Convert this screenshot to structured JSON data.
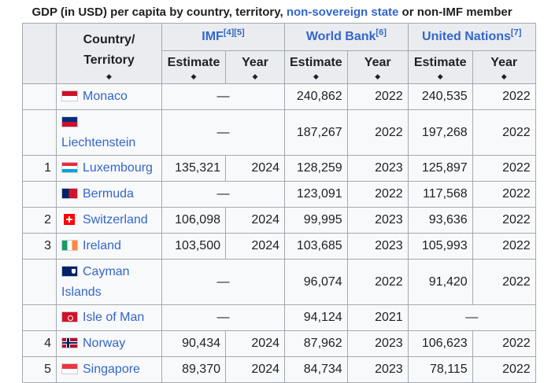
{
  "caption": {
    "prefix": "GDP (in USD) per capita by country, territory,",
    "link": "non-sovereign state",
    "suffix": "or non-IMF member"
  },
  "headers": {
    "country": "Country/",
    "territory": "Territory",
    "imf": "IMF",
    "imf_refs": "[4][5]",
    "wb": "World Bank",
    "wb_refs": "[6]",
    "un": "United Nations",
    "un_refs": "[7]",
    "estimate": "Estimate",
    "year": "Year",
    "sort_glyph": "◆"
  },
  "rows": [
    {
      "rank": "",
      "country": "Monaco",
      "flag": "monaco",
      "imf_est": "—",
      "imf_year": "",
      "wb_est": "240,862",
      "wb_year": "2022",
      "un_est": "240,535",
      "un_year": "2022"
    },
    {
      "rank": "",
      "country": "Liechtenstein",
      "flag": "liechtenstein",
      "imf_est": "—",
      "imf_year": "",
      "wb_est": "187,267",
      "wb_year": "2022",
      "un_est": "197,268",
      "un_year": "2022"
    },
    {
      "rank": "1",
      "country": "Luxembourg",
      "flag": "luxembourg",
      "imf_est": "135,321",
      "imf_year": "2024",
      "wb_est": "128,259",
      "wb_year": "2023",
      "un_est": "125,897",
      "un_year": "2022"
    },
    {
      "rank": "",
      "country": "Bermuda",
      "flag": "bermuda",
      "imf_est": "—",
      "imf_year": "",
      "wb_est": "123,091",
      "wb_year": "2022",
      "un_est": "117,568",
      "un_year": "2022"
    },
    {
      "rank": "2",
      "country": "Switzerland",
      "flag": "switzerland",
      "imf_est": "106,098",
      "imf_year": "2024",
      "wb_est": "99,995",
      "wb_year": "2023",
      "un_est": "93,636",
      "un_year": "2022"
    },
    {
      "rank": "3",
      "country": "Ireland",
      "flag": "ireland",
      "imf_est": "103,500",
      "imf_year": "2024",
      "wb_est": "103,685",
      "wb_year": "2023",
      "un_est": "105,993",
      "un_year": "2022"
    },
    {
      "rank": "",
      "country": "Cayman Islands",
      "flag": "cayman",
      "imf_est": "—",
      "imf_year": "",
      "wb_est": "96,074",
      "wb_year": "2022",
      "un_est": "91,420",
      "un_year": "2022"
    },
    {
      "rank": "",
      "country": "Isle of Man",
      "flag": "isleofman",
      "imf_est": "—",
      "imf_year": "",
      "wb_est": "94,124",
      "wb_year": "2021",
      "un_est": "—",
      "un_year": ""
    },
    {
      "rank": "4",
      "country": "Norway",
      "flag": "norway",
      "imf_est": "90,434",
      "imf_year": "2024",
      "wb_est": "87,962",
      "wb_year": "2023",
      "un_est": "106,623",
      "un_year": "2022"
    },
    {
      "rank": "5",
      "country": "Singapore",
      "flag": "singapore",
      "imf_est": "89,370",
      "imf_year": "2024",
      "wb_est": "84,734",
      "wb_year": "2023",
      "un_est": "78,115",
      "un_year": "2022"
    }
  ],
  "colors": {
    "link": "#3366cc",
    "header_bg": "#eaecf0",
    "cell_bg": "#f8f9fa",
    "border": "#a2a9b1"
  }
}
